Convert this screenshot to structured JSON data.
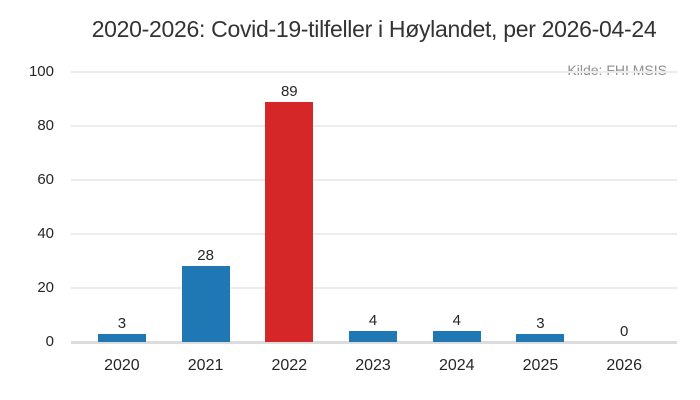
{
  "title": "2020-2026: Covid-19-tilfeller i Høylandet, per 2026-04-24",
  "source_note": "Kilde: FHI MSIS",
  "colors": {
    "bar_default": "#1f77b4",
    "bar_highlight": "#d62728",
    "gridline": "#ececec",
    "axis_line": "#dcdcdc",
    "title_text": "#333333",
    "tick_text": "#262626",
    "source_text": "#8f8f8f"
  },
  "chart_data": {
    "type": "bar",
    "title": "2020-2026: Covid-19-tilfeller i Høylandet, per 2026-04-24",
    "source": "Kilde: FHI MSIS",
    "categories": [
      "2020",
      "2021",
      "2022",
      "2023",
      "2024",
      "2025",
      "2026"
    ],
    "values": [
      3,
      28,
      89,
      4,
      4,
      3,
      0
    ],
    "bar_colors": [
      "#1f77b4",
      "#1f77b4",
      "#d62728",
      "#1f77b4",
      "#1f77b4",
      "#1f77b4",
      "#1f77b4"
    ],
    "highlight_index": 2,
    "data_labels_shown": true,
    "xlabel": "",
    "ylabel": "",
    "ylim": [
      0,
      100
    ],
    "yticks": [
      100,
      80,
      60,
      40,
      20,
      0
    ],
    "grid": "horizontal",
    "legend": "none"
  }
}
